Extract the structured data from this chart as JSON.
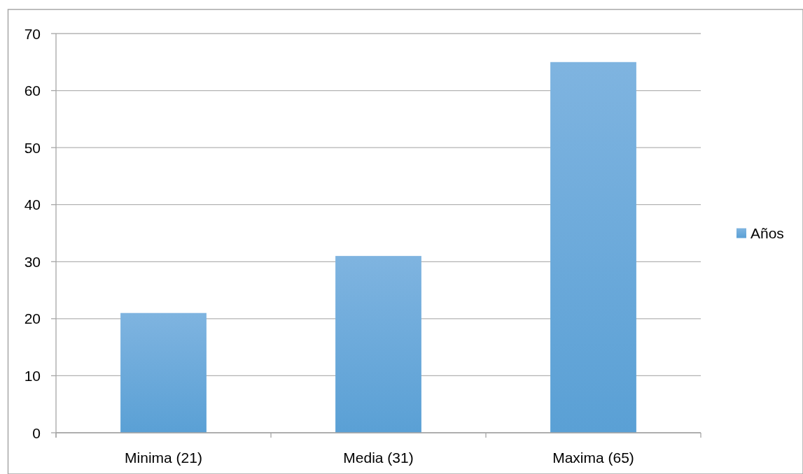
{
  "chart_data": {
    "type": "bar",
    "categories": [
      "Minima (21)",
      "Media (31)",
      "Maxima (65)"
    ],
    "series": [
      {
        "name": "Años",
        "color": "#5ea7de",
        "values": [
          21,
          31,
          65
        ]
      }
    ],
    "ylim": [
      0,
      70
    ],
    "yticks": [
      0,
      10,
      20,
      30,
      40,
      50,
      60,
      70
    ],
    "grid": "y",
    "legend": "right"
  }
}
